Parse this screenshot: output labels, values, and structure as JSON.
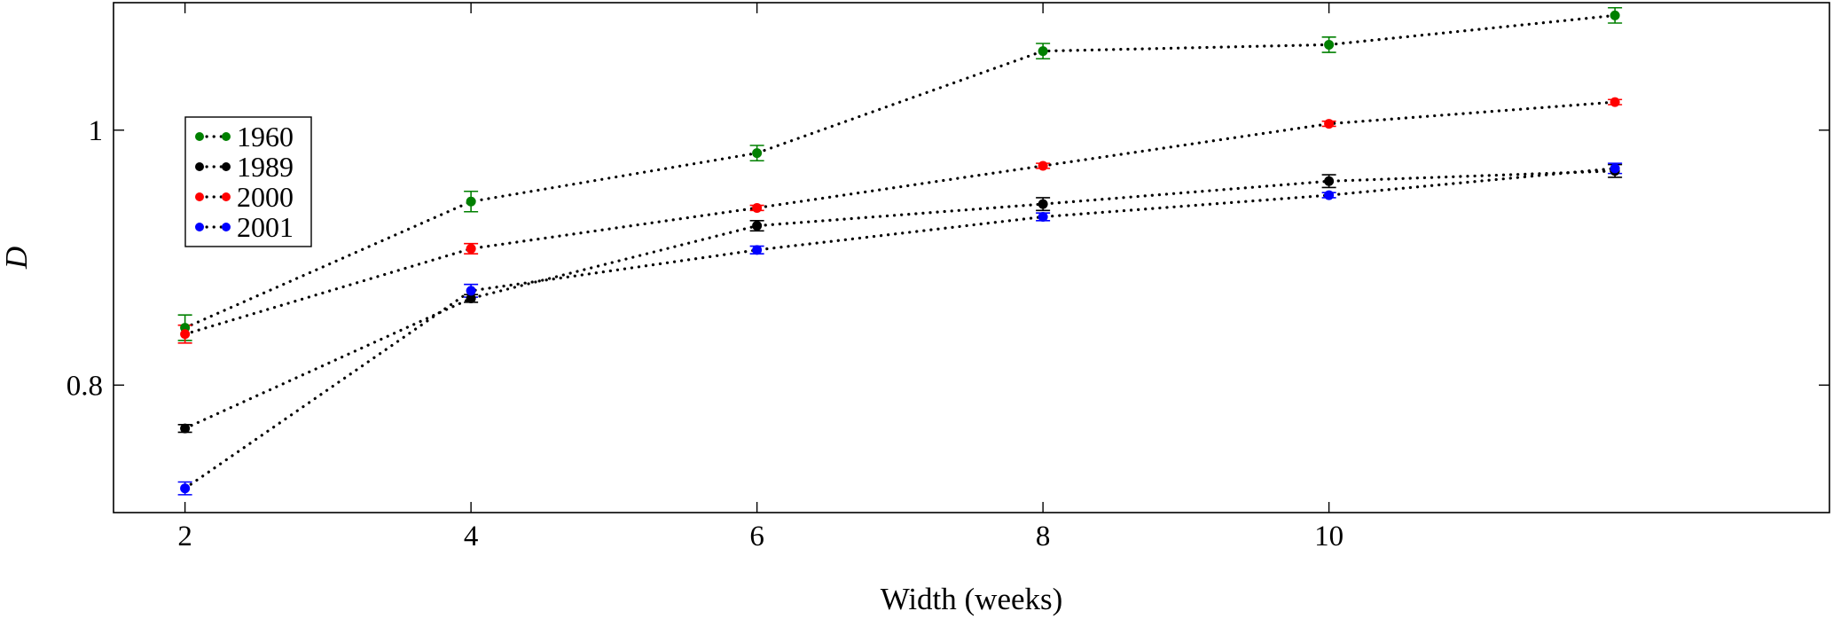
{
  "chart_data": {
    "type": "scatter",
    "title": "",
    "xlabel": "Width (weeks)",
    "ylabel": "D",
    "xlim": [
      1.5,
      13.5
    ],
    "ylim": [
      0.7,
      1.1
    ],
    "xticks": [
      2,
      4,
      6,
      8,
      10
    ],
    "yticks": [
      0.8,
      1
    ],
    "xtick_labels": [
      "2",
      "4",
      "6",
      "8",
      "10"
    ],
    "ytick_labels": [
      "0.8",
      "1"
    ],
    "line_style": "dotted",
    "legend_position": "upper-left",
    "x": [
      2,
      4,
      6,
      8,
      10,
      12
    ],
    "series": [
      {
        "name": "1960",
        "color": "#008000",
        "values": [
          0.845,
          0.944,
          0.982,
          1.062,
          1.067,
          1.09
        ],
        "errors": [
          0.01,
          0.008,
          0.006,
          0.006,
          0.006,
          0.006
        ]
      },
      {
        "name": "1989",
        "color": "#000000",
        "values": [
          0.766,
          0.868,
          0.925,
          0.942,
          0.96,
          0.968
        ],
        "errors": [
          0.003,
          0.003,
          0.004,
          0.005,
          0.005,
          0.005
        ]
      },
      {
        "name": "2000",
        "color": "#ff0000",
        "values": [
          0.84,
          0.907,
          0.939,
          0.972,
          1.005,
          1.022
        ],
        "errors": [
          0.007,
          0.004,
          0.002,
          0.002,
          0.002,
          0.002
        ]
      },
      {
        "name": "2001",
        "color": "#0000ff",
        "values": [
          0.719,
          0.874,
          0.906,
          0.932,
          0.949,
          0.97
        ],
        "errors": [
          0.005,
          0.005,
          0.003,
          0.003,
          0.002,
          0.004
        ]
      }
    ]
  }
}
